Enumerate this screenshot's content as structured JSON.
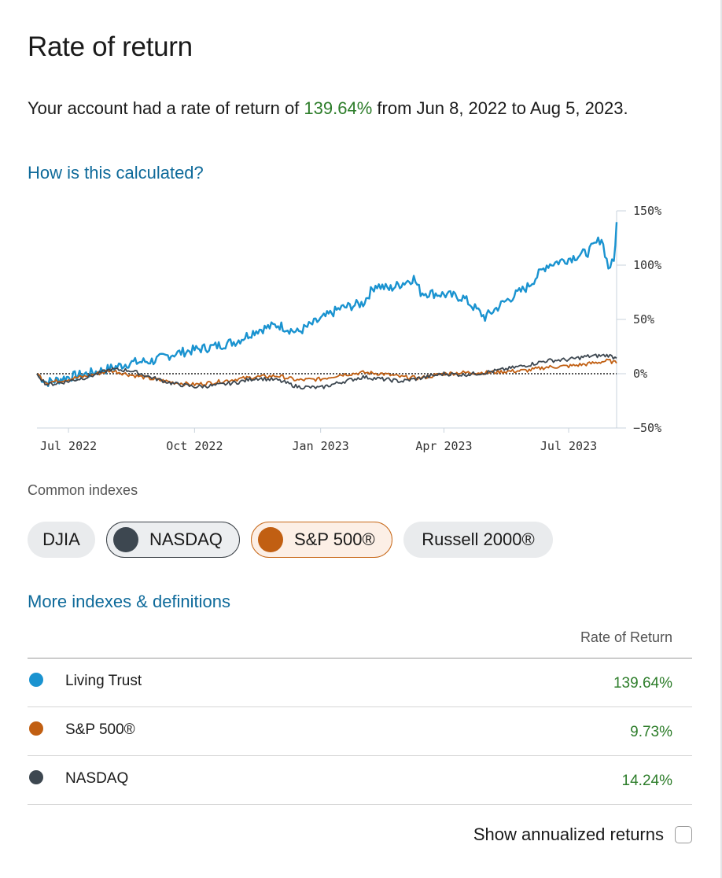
{
  "page": {
    "title": "Rate of return",
    "summary_prefix": "Your account had a rate of return of ",
    "summary_value": "139.64%",
    "summary_suffix": " from Jun 8, 2022 to Aug 5, 2023.",
    "how_link": "How is this calculated?"
  },
  "indexes": {
    "label": "Common indexes",
    "chips": [
      {
        "label": "DJIA",
        "selected": false
      },
      {
        "label": "NASDAQ",
        "selected": true,
        "color": "#3d4750"
      },
      {
        "label": "S&P 500®",
        "selected": true,
        "color": "#c15f12"
      },
      {
        "label": "Russell 2000®",
        "selected": false
      }
    ],
    "more_link": "More indexes & definitions"
  },
  "table": {
    "header": "Rate of Return",
    "rows": [
      {
        "name": "Living Trust",
        "value": "139.64%",
        "color": "#1a93d0"
      },
      {
        "name": "S&P 500®",
        "value": "9.73%",
        "color": "#c15f12"
      },
      {
        "name": "NASDAQ",
        "value": "14.24%",
        "color": "#3d4750"
      }
    ]
  },
  "annualized": {
    "label": "Show annualized returns",
    "checked": false
  },
  "chart_data": {
    "type": "line",
    "x_ticks": [
      "Jul 2022",
      "Oct 2022",
      "Jan 2023",
      "Apr 2023",
      "Jul 2023"
    ],
    "x_tick_dates": [
      "2022-07-01",
      "2022-10-01",
      "2023-01-01",
      "2023-04-01",
      "2023-07-01"
    ],
    "y_ticks": [
      "150%",
      "100%",
      "50%",
      "0%",
      "−50%"
    ],
    "y_tick_values": [
      150,
      100,
      50,
      0,
      -50
    ],
    "ylim": [
      -50,
      150
    ],
    "xlim": [
      "2022-06-08",
      "2023-08-05"
    ],
    "zero_line": "dotted",
    "series": [
      {
        "name": "Living Trust",
        "color": "#1a93d0",
        "points": [
          [
            "2022-06-08",
            0
          ],
          [
            "2022-06-15",
            -8
          ],
          [
            "2022-06-22",
            -6
          ],
          [
            "2022-07-01",
            -3
          ],
          [
            "2022-07-15",
            0
          ],
          [
            "2022-08-01",
            5
          ],
          [
            "2022-08-15",
            10
          ],
          [
            "2022-09-01",
            12
          ],
          [
            "2022-09-15",
            18
          ],
          [
            "2022-10-01",
            22
          ],
          [
            "2022-10-15",
            25
          ],
          [
            "2022-11-01",
            30
          ],
          [
            "2022-11-15",
            40
          ],
          [
            "2022-12-01",
            45
          ],
          [
            "2022-12-15",
            38
          ],
          [
            "2023-01-01",
            50
          ],
          [
            "2023-01-15",
            60
          ],
          [
            "2023-02-01",
            65
          ],
          [
            "2023-02-10",
            82
          ],
          [
            "2023-02-20",
            78
          ],
          [
            "2023-03-01",
            83
          ],
          [
            "2023-03-10",
            88
          ],
          [
            "2023-03-15",
            75
          ],
          [
            "2023-04-01",
            73
          ],
          [
            "2023-04-15",
            70
          ],
          [
            "2023-05-01",
            52
          ],
          [
            "2023-05-15",
            66
          ],
          [
            "2023-06-01",
            80
          ],
          [
            "2023-06-15",
            100
          ],
          [
            "2023-07-01",
            106
          ],
          [
            "2023-07-15",
            112
          ],
          [
            "2023-07-25",
            125
          ],
          [
            "2023-07-30",
            98
          ],
          [
            "2023-08-03",
            103
          ],
          [
            "2023-08-05",
            139.64
          ]
        ]
      },
      {
        "name": "S&P 500®",
        "color": "#c15f12",
        "points": [
          [
            "2022-06-08",
            0
          ],
          [
            "2022-06-15",
            -8
          ],
          [
            "2022-06-22",
            -7
          ],
          [
            "2022-07-01",
            -5
          ],
          [
            "2022-07-15",
            -2
          ],
          [
            "2022-08-01",
            3
          ],
          [
            "2022-08-15",
            -1
          ],
          [
            "2022-09-01",
            -5
          ],
          [
            "2022-09-15",
            -8
          ],
          [
            "2022-10-01",
            -10
          ],
          [
            "2022-10-15",
            -8
          ],
          [
            "2022-11-01",
            -5
          ],
          [
            "2022-11-15",
            -3
          ],
          [
            "2022-12-01",
            -2
          ],
          [
            "2022-12-15",
            -6
          ],
          [
            "2023-01-01",
            -5
          ],
          [
            "2023-01-15",
            -1
          ],
          [
            "2023-02-01",
            1
          ],
          [
            "2023-02-15",
            0
          ],
          [
            "2023-03-01",
            -3
          ],
          [
            "2023-03-15",
            -4
          ],
          [
            "2023-04-01",
            0
          ],
          [
            "2023-04-15",
            1
          ],
          [
            "2023-05-01",
            1
          ],
          [
            "2023-05-15",
            2
          ],
          [
            "2023-06-01",
            3
          ],
          [
            "2023-06-15",
            6
          ],
          [
            "2023-07-01",
            7
          ],
          [
            "2023-07-15",
            9
          ],
          [
            "2023-07-30",
            12
          ],
          [
            "2023-08-05",
            9.73
          ]
        ]
      },
      {
        "name": "NASDAQ",
        "color": "#3d4750",
        "points": [
          [
            "2022-06-08",
            0
          ],
          [
            "2022-06-15",
            -10
          ],
          [
            "2022-06-22",
            -9
          ],
          [
            "2022-07-01",
            -7
          ],
          [
            "2022-07-15",
            -3
          ],
          [
            "2022-08-01",
            4
          ],
          [
            "2022-08-15",
            3
          ],
          [
            "2022-09-01",
            -4
          ],
          [
            "2022-09-15",
            -9
          ],
          [
            "2022-10-01",
            -12
          ],
          [
            "2022-10-15",
            -11
          ],
          [
            "2022-11-01",
            -8
          ],
          [
            "2022-11-15",
            -4
          ],
          [
            "2022-12-01",
            -6
          ],
          [
            "2022-12-15",
            -12
          ],
          [
            "2023-01-01",
            -13
          ],
          [
            "2023-01-15",
            -8
          ],
          [
            "2023-02-01",
            -3
          ],
          [
            "2023-02-15",
            -5
          ],
          [
            "2023-03-01",
            -7
          ],
          [
            "2023-03-15",
            -4
          ],
          [
            "2023-04-01",
            0
          ],
          [
            "2023-04-15",
            -1
          ],
          [
            "2023-05-01",
            1
          ],
          [
            "2023-05-15",
            4
          ],
          [
            "2023-06-01",
            8
          ],
          [
            "2023-06-15",
            12
          ],
          [
            "2023-07-01",
            13
          ],
          [
            "2023-07-15",
            16
          ],
          [
            "2023-07-30",
            17
          ],
          [
            "2023-08-05",
            14.24
          ]
        ]
      }
    ]
  }
}
